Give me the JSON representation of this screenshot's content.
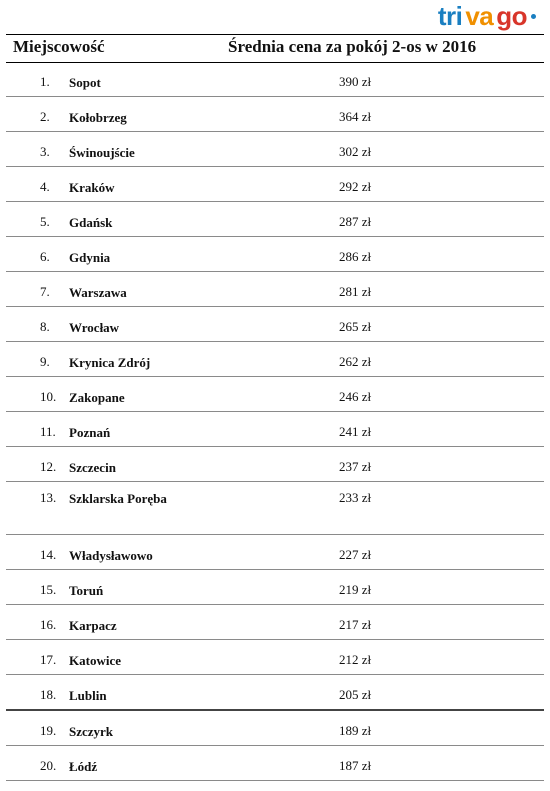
{
  "logo": {
    "part1": "tri",
    "part2": "va",
    "part3": "go"
  },
  "header": {
    "city_label": "Miejscowość",
    "price_label": "Średnia cena za pokój 2-os w 2016"
  },
  "rows": [
    {
      "rank": "1.",
      "city": "Sopot",
      "price": "390 zł"
    },
    {
      "rank": "2.",
      "city": "Kołobrzeg",
      "price": "364 zł"
    },
    {
      "rank": "3.",
      "city": "Świnoujście",
      "price": "302 zł"
    },
    {
      "rank": "4.",
      "city": "Kraków",
      "price": "292 zł"
    },
    {
      "rank": "5.",
      "city": "Gdańsk",
      "price": "287 zł"
    },
    {
      "rank": "6.",
      "city": "Gdynia",
      "price": "286 zł"
    },
    {
      "rank": "7.",
      "city": "Warszawa",
      "price": "281 zł"
    },
    {
      "rank": "8.",
      "city": "Wrocław",
      "price": "265 zł"
    },
    {
      "rank": "9.",
      "city": "Krynica Zdrój",
      "price": "262 zł"
    },
    {
      "rank": "10.",
      "city": "Zakopane",
      "price": "246 zł"
    },
    {
      "rank": "11.",
      "city": "Poznań",
      "price": "241 zł"
    },
    {
      "rank": "12.",
      "city": "Szczecin",
      "price": "237 zł"
    },
    {
      "rank": "13.",
      "city": "Szklarska Poręba",
      "price": "233 zł"
    },
    {
      "rank": "14.",
      "city": "Władysławowo",
      "price": "227 zł"
    },
    {
      "rank": "15.",
      "city": "Toruń",
      "price": "219 zł"
    },
    {
      "rank": "16.",
      "city": "Karpacz",
      "price": "217 zł"
    },
    {
      "rank": "17.",
      "city": "Katowice",
      "price": "212 zł"
    },
    {
      "rank": "18.",
      "city": "Lublin",
      "price": "205 zł"
    },
    {
      "rank": "19.",
      "city": "Szczyrk",
      "price": "189 zł"
    },
    {
      "rank": "20.",
      "city": "Łódź",
      "price": "187 zł"
    }
  ]
}
